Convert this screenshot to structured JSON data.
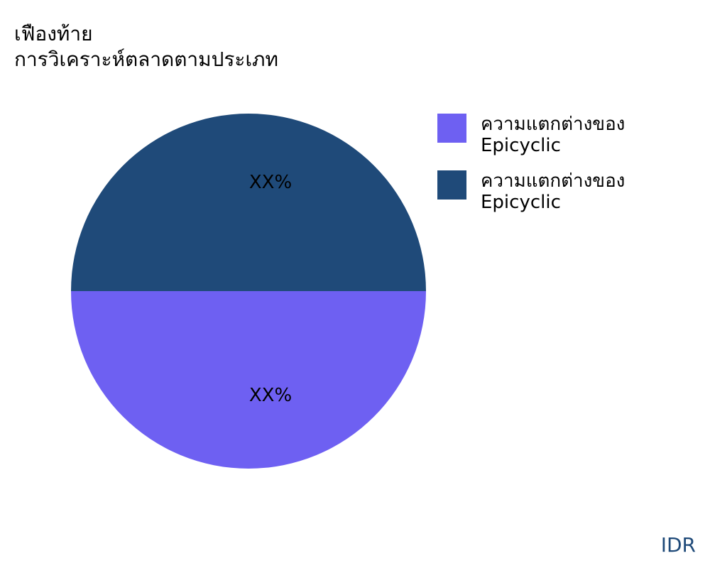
{
  "title_line1": "เฟืองท้าย",
  "title_line2": "การวิเคราะห์ตลาดตามประเภท",
  "brand": "IDR",
  "chart_data": {
    "type": "pie",
    "title": "เฟืองท้าย การวิเคราะห์ตลาดตามประเภท",
    "legend_position": "right",
    "series": [
      {
        "name": "ความแตกต่างของ Epicyclic",
        "value": 50,
        "label": "XX%",
        "color": "#6e60f2"
      },
      {
        "name": "ความแตกต่างของ Epicyclic",
        "value": 50,
        "label": "XX%",
        "color": "#1f4a79"
      }
    ]
  }
}
